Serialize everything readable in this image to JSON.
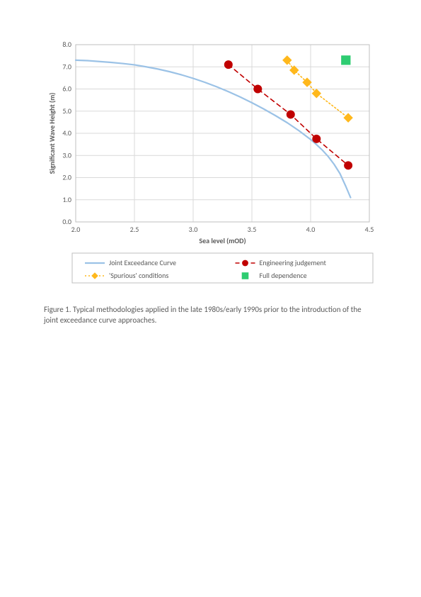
{
  "chart": {
    "type": "line-scatter",
    "background_color": "#ffffff",
    "plot_border_color": "#bfbfbf",
    "grid_color": "#d9d9d9",
    "x": {
      "title": "Sea level (mOD)",
      "min": 2.0,
      "max": 4.5,
      "step": 0.5,
      "ticks": [
        "2.0",
        "2.5",
        "3.0",
        "3.5",
        "4.0",
        "4.5"
      ]
    },
    "y": {
      "title": "Significant Wave Height (m)",
      "min": 0.0,
      "max": 8.0,
      "step": 1.0,
      "ticks": [
        "0.0",
        "1.0",
        "2.0",
        "3.0",
        "4.0",
        "5.0",
        "6.0",
        "7.0",
        "8.0"
      ]
    },
    "series": {
      "joint": {
        "label": "Joint Exceedance Curve",
        "color": "#9bc2e6",
        "line_width": 2.2,
        "dash": "none",
        "marker": "none",
        "points": [
          [
            2.0,
            7.3
          ],
          [
            2.1,
            7.28
          ],
          [
            2.2,
            7.24
          ],
          [
            2.3,
            7.2
          ],
          [
            2.4,
            7.15
          ],
          [
            2.5,
            7.09
          ],
          [
            2.6,
            7.0
          ],
          [
            2.7,
            6.9
          ],
          [
            2.8,
            6.78
          ],
          [
            2.9,
            6.64
          ],
          [
            3.0,
            6.48
          ],
          [
            3.1,
            6.3
          ],
          [
            3.2,
            6.1
          ],
          [
            3.3,
            5.88
          ],
          [
            3.4,
            5.64
          ],
          [
            3.5,
            5.38
          ],
          [
            3.6,
            5.1
          ],
          [
            3.7,
            4.8
          ],
          [
            3.8,
            4.48
          ],
          [
            3.9,
            4.12
          ],
          [
            4.0,
            3.72
          ],
          [
            4.05,
            3.49
          ],
          [
            4.1,
            3.24
          ],
          [
            4.15,
            2.95
          ],
          [
            4.2,
            2.6
          ],
          [
            4.25,
            2.18
          ],
          [
            4.3,
            1.6
          ],
          [
            4.34,
            1.1
          ]
        ]
      },
      "engineering": {
        "label": "Engineering judgement",
        "color": "#c00000",
        "line_width": 1.6,
        "dash": "6,5",
        "marker": "circle",
        "marker_size": 5.5,
        "points": [
          [
            3.3,
            7.1
          ],
          [
            3.55,
            6.0
          ],
          [
            3.83,
            4.85
          ],
          [
            4.05,
            3.75
          ],
          [
            4.32,
            2.55
          ]
        ]
      },
      "spurious": {
        "label": "'Spurious' conditions",
        "color": "#ffb81c",
        "line_width": 1.6,
        "dash": "2,3",
        "marker": "diamond",
        "marker_size": 6,
        "points": [
          [
            3.8,
            7.3
          ],
          [
            3.86,
            6.85
          ],
          [
            3.97,
            6.3
          ],
          [
            4.05,
            5.8
          ],
          [
            4.32,
            4.7
          ]
        ]
      },
      "fulldep": {
        "label": "Full dependence",
        "color": "#2ecc71",
        "line_width": 0,
        "dash": "none",
        "marker": "square",
        "marker_size": 8,
        "points": [
          [
            4.3,
            7.3
          ]
        ]
      }
    },
    "legend": {
      "items_order": [
        "joint",
        "engineering",
        "spurious",
        "fulldep"
      ],
      "border_color": "#bfbfbf"
    }
  },
  "caption": "Figure 1. Typical methodologies applied in the late 1980s/early 1990s prior to the introduction of the joint exceedance curve approaches."
}
